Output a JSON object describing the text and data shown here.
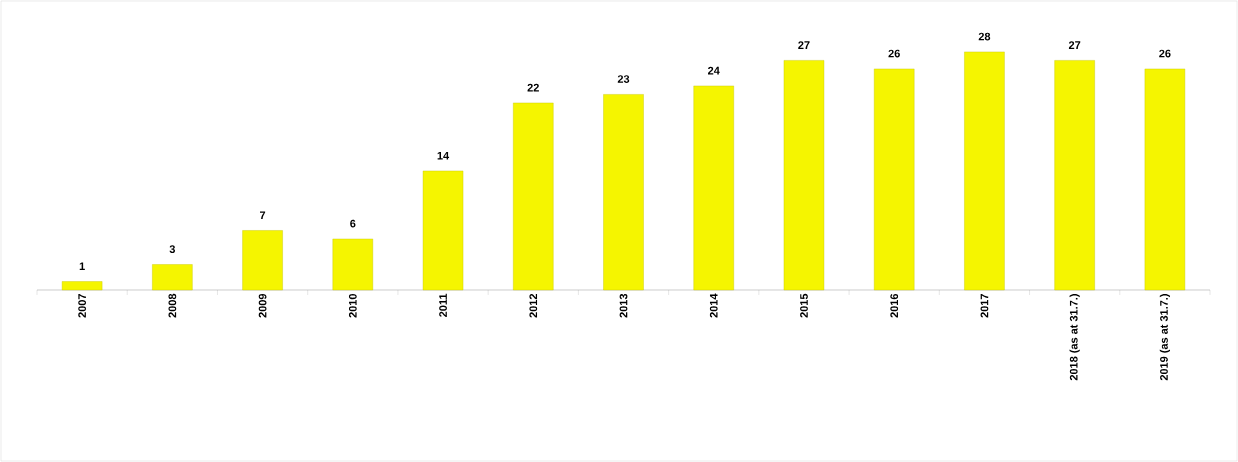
{
  "chart_data": {
    "type": "bar",
    "categories": [
      "2007",
      "2008",
      "2009",
      "2010",
      "2011",
      "2012",
      "2013",
      "2014",
      "2015",
      "2016",
      "2017",
      "2018 (as at 31.7.)",
      "2019 (as at 31.7.)"
    ],
    "values": [
      1,
      3,
      7,
      6,
      14,
      22,
      23,
      24,
      27,
      26,
      28,
      27,
      26
    ],
    "color": "#f5f500",
    "data_labels": true
  }
}
